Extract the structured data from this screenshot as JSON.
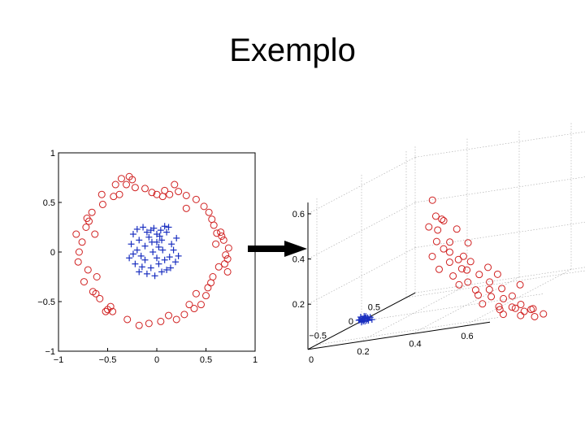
{
  "slide": {
    "title": "Exemplo"
  },
  "colors": {
    "outer": "#d02020",
    "inner": "#1a2fc0",
    "axis": "#000000",
    "grid": "#a8a8a8"
  },
  "chart_data": [
    {
      "type": "scatter",
      "title": "",
      "xlabel": "",
      "ylabel": "",
      "xlim": [
        -1,
        1
      ],
      "ylim": [
        -1,
        1
      ],
      "xticks": [
        "−1",
        "−0.5",
        "0",
        "0.5",
        "1"
      ],
      "yticks": [
        "1",
        "0.5",
        "0",
        "−0.5",
        "−1"
      ],
      "grid": false,
      "series": [
        {
          "marker": "circle",
          "color": "#d02020",
          "points": [
            [
              0.73,
              0.04
            ],
            [
              0.72,
              -0.07
            ],
            [
              0.7,
              -0.03
            ],
            [
              0.69,
              -0.12
            ],
            [
              0.68,
              0.12
            ],
            [
              0.66,
              0.16
            ],
            [
              0.63,
              -0.15
            ],
            [
              0.61,
              0.19
            ],
            [
              0.58,
              0.27
            ],
            [
              0.57,
              -0.25
            ],
            [
              0.56,
              0.33
            ],
            [
              0.55,
              -0.31
            ],
            [
              0.53,
              0.4
            ],
            [
              0.5,
              -0.44
            ],
            [
              0.48,
              0.46
            ],
            [
              0.45,
              -0.53
            ],
            [
              0.4,
              0.53
            ],
            [
              0.38,
              -0.57
            ],
            [
              0.33,
              -0.53
            ],
            [
              0.3,
              0.57
            ],
            [
              0.28,
              -0.63
            ],
            [
              0.22,
              0.61
            ],
            [
              0.2,
              -0.68
            ],
            [
              0.18,
              0.68
            ],
            [
              0.13,
              0.58
            ],
            [
              0.12,
              -0.64
            ],
            [
              0.08,
              0.62
            ],
            [
              0.06,
              0.56
            ],
            [
              0.04,
              -0.7
            ],
            [
              0.0,
              0.58
            ],
            [
              -0.05,
              0.6
            ],
            [
              -0.08,
              -0.72
            ],
            [
              -0.12,
              0.64
            ],
            [
              -0.18,
              -0.74
            ],
            [
              -0.22,
              0.65
            ],
            [
              -0.25,
              0.73
            ],
            [
              -0.28,
              0.76
            ],
            [
              -0.31,
              0.68
            ],
            [
              -0.36,
              0.74
            ],
            [
              -0.38,
              0.58
            ],
            [
              -0.42,
              0.68
            ],
            [
              -0.45,
              -0.6
            ],
            [
              -0.47,
              -0.55
            ],
            [
              -0.5,
              -0.58
            ],
            [
              -0.52,
              -0.6
            ],
            [
              -0.55,
              0.48
            ],
            [
              -0.58,
              -0.47
            ],
            [
              -0.62,
              -0.42
            ],
            [
              -0.65,
              -0.4
            ],
            [
              -0.66,
              0.4
            ],
            [
              -0.69,
              0.31
            ],
            [
              -0.71,
              0.34
            ],
            [
              -0.72,
              0.25
            ],
            [
              -0.74,
              -0.3
            ],
            [
              -0.76,
              0.1
            ],
            [
              -0.79,
              0.0
            ],
            [
              -0.8,
              -0.1
            ],
            [
              -0.82,
              0.18
            ],
            [
              -0.63,
              0.18
            ],
            [
              -0.61,
              -0.25
            ],
            [
              0.6,
              0.08
            ],
            [
              0.65,
              0.2
            ],
            [
              0.52,
              -0.36
            ],
            [
              0.4,
              -0.42
            ],
            [
              -0.56,
              0.58
            ],
            [
              -0.44,
              0.56
            ],
            [
              0.3,
              0.44
            ],
            [
              -0.7,
              -0.18
            ],
            [
              0.72,
              -0.2
            ],
            [
              -0.3,
              -0.68
            ]
          ]
        },
        {
          "marker": "plus",
          "color": "#1a2fc0",
          "points": [
            [
              0.12,
              0.25
            ],
            [
              0.1,
              0.2
            ],
            [
              0.08,
              0.26
            ],
            [
              0.05,
              0.12
            ],
            [
              0.04,
              0.22
            ],
            [
              0.02,
              0.05
            ],
            [
              0.0,
              0.18
            ],
            [
              -0.03,
              0.24
            ],
            [
              -0.05,
              0.1
            ],
            [
              -0.06,
              0.22
            ],
            [
              -0.1,
              0.2
            ],
            [
              -0.12,
              0.06
            ],
            [
              -0.14,
              0.25
            ],
            [
              -0.16,
              -0.04
            ],
            [
              -0.18,
              0.12
            ],
            [
              -0.2,
              0.02
            ],
            [
              -0.22,
              -0.12
            ],
            [
              -0.24,
              -0.02
            ],
            [
              -0.26,
              0.08
            ],
            [
              -0.15,
              -0.15
            ],
            [
              -0.1,
              -0.22
            ],
            [
              -0.06,
              -0.16
            ],
            [
              -0.02,
              -0.24
            ],
            [
              0.02,
              -0.12
            ],
            [
              0.05,
              -0.2
            ],
            [
              0.08,
              -0.08
            ],
            [
              0.1,
              -0.18
            ],
            [
              0.13,
              -0.05
            ],
            [
              0.15,
              0.08
            ],
            [
              0.17,
              0.02
            ],
            [
              0.19,
              -0.1
            ],
            [
              0.2,
              0.14
            ],
            [
              -0.04,
              0.0
            ],
            [
              0.06,
              0.02
            ],
            [
              -0.12,
              -0.08
            ],
            [
              0.0,
              -0.06
            ],
            [
              0.03,
              0.16
            ],
            [
              -0.18,
              -0.2
            ],
            [
              0.14,
              -0.16
            ],
            [
              -0.08,
              0.15
            ],
            [
              -0.24,
              0.18
            ],
            [
              0.22,
              -0.04
            ],
            [
              -0.2,
              0.23
            ],
            [
              0.0,
              0.1
            ],
            [
              -0.28,
              -0.06
            ]
          ]
        }
      ]
    },
    {
      "type": "scatter",
      "title": "",
      "xlabel": "",
      "ylabel": "",
      "zticks": [
        "0.6",
        "0.4",
        "0.2"
      ],
      "xticks_right": [
        "0",
        "0.2",
        "0.4",
        "0.6"
      ],
      "yticks_left": [
        "0.5",
        "0",
        "−0.5"
      ],
      "grid": true,
      "series": [
        {
          "marker": "circle",
          "color": "#d02020",
          "points": [
            [
              0.3,
              0.08,
              0.5
            ],
            [
              0.32,
              0.1,
              0.43
            ],
            [
              0.3,
              0.12,
              0.39
            ],
            [
              0.34,
              0.07,
              0.4
            ],
            [
              0.33,
              0.12,
              0.32
            ],
            [
              0.35,
              0.1,
              0.28
            ],
            [
              0.32,
              0.14,
              0.26
            ],
            [
              0.36,
              0.06,
              0.3
            ],
            [
              0.38,
              0.12,
              0.22
            ],
            [
              0.35,
              0.15,
              0.2
            ],
            [
              0.4,
              0.08,
              0.22
            ],
            [
              0.42,
              0.1,
              0.18
            ],
            [
              0.4,
              0.14,
              0.16
            ],
            [
              0.44,
              0.06,
              0.2
            ],
            [
              0.45,
              0.12,
              0.12
            ],
            [
              0.43,
              0.16,
              0.12
            ],
            [
              0.48,
              0.08,
              0.14
            ],
            [
              0.48,
              0.12,
              0.08
            ],
            [
              0.5,
              0.15,
              0.06
            ],
            [
              0.52,
              0.08,
              0.1
            ],
            [
              0.54,
              0.12,
              0.04
            ],
            [
              0.52,
              0.16,
              0.02
            ],
            [
              0.56,
              0.06,
              0.06
            ],
            [
              0.58,
              0.1,
              0.02
            ],
            [
              0.58,
              0.14,
              -0.02
            ],
            [
              0.6,
              0.06,
              0.02
            ],
            [
              0.62,
              0.12,
              -0.02
            ],
            [
              0.6,
              0.16,
              -0.04
            ],
            [
              0.64,
              0.08,
              -0.02
            ],
            [
              0.66,
              0.1,
              -0.05
            ],
            [
              0.66,
              0.14,
              -0.06
            ],
            [
              0.68,
              0.06,
              -0.05
            ],
            [
              0.7,
              0.1,
              -0.08
            ],
            [
              0.38,
              0.04,
              0.35
            ],
            [
              0.36,
              0.15,
              0.42
            ],
            [
              0.42,
              0.03,
              0.28
            ],
            [
              0.46,
              0.16,
              0.18
            ],
            [
              0.5,
              0.04,
              0.16
            ],
            [
              0.55,
              0.17,
              0.08
            ],
            [
              0.62,
              0.03,
              0.06
            ],
            [
              0.65,
              0.17,
              -0.02
            ],
            [
              0.7,
              0.14,
              -0.04
            ],
            [
              0.72,
              0.06,
              -0.08
            ],
            [
              0.31,
              0.05,
              0.36
            ],
            [
              0.37,
              0.09,
              0.26
            ],
            [
              0.44,
              0.14,
              0.24
            ],
            [
              0.53,
              0.02,
              0.12
            ],
            [
              0.59,
              0.18,
              0.0
            ]
          ]
        },
        {
          "marker": "plus",
          "color": "#1a2fc0",
          "points": [
            [
              0.0,
              0.0,
              0.0
            ],
            [
              0.01,
              0.01,
              0.0
            ],
            [
              0.0,
              0.02,
              0.01
            ],
            [
              0.02,
              0.0,
              0.0
            ],
            [
              0.01,
              -0.01,
              0.01
            ],
            [
              0.0,
              0.01,
              0.02
            ],
            [
              0.02,
              0.02,
              0.0
            ],
            [
              0.01,
              0.0,
              0.02
            ],
            [
              0.03,
              0.01,
              0.0
            ],
            [
              0.0,
              -0.02,
              0.0
            ],
            [
              0.02,
              -0.01,
              0.01
            ],
            [
              0.01,
              0.03,
              0.0
            ],
            [
              0.03,
              -0.01,
              0.01
            ],
            [
              0.0,
              0.03,
              0.01
            ],
            [
              0.02,
              0.01,
              0.02
            ],
            [
              0.04,
              0.0,
              0.0
            ],
            [
              0.01,
              0.02,
              0.01
            ],
            [
              0.03,
              0.02,
              0.01
            ]
          ]
        }
      ]
    }
  ]
}
